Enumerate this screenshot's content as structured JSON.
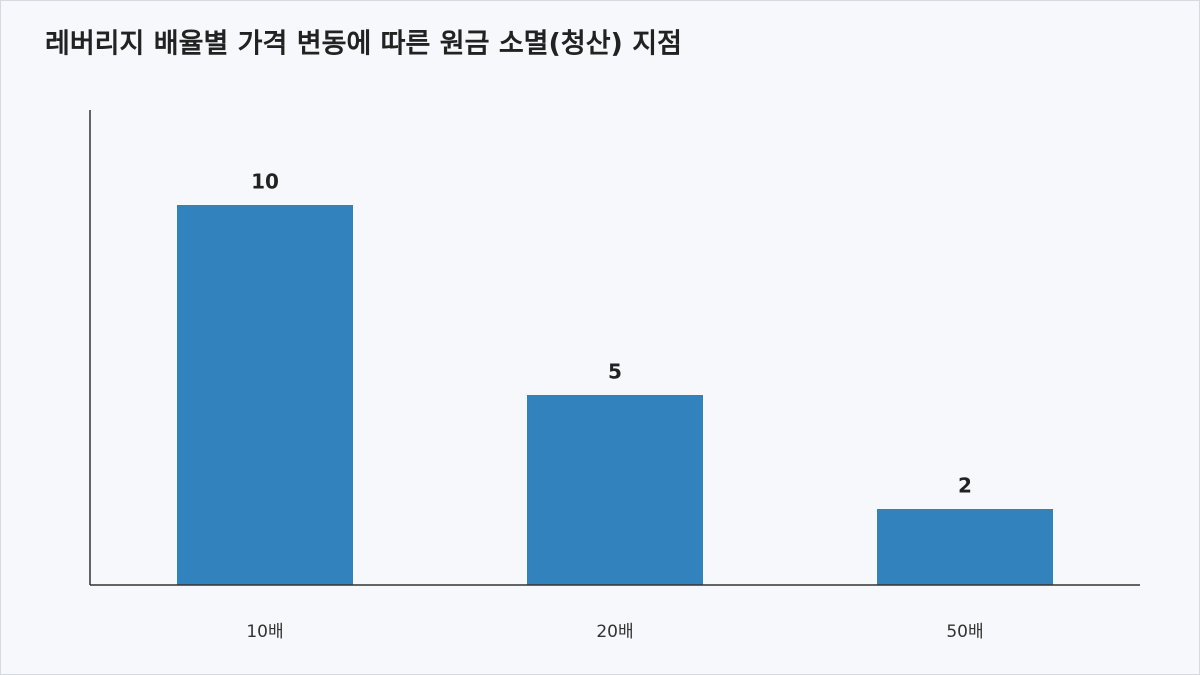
{
  "chart_data": {
    "type": "bar",
    "title": "레버리지 배율별 가격 변동에 따른 원금 소멸(청산) 지점",
    "categories": [
      "10배",
      "20배",
      "50배"
    ],
    "values": [
      10,
      5,
      2
    ],
    "color": "#3182bd",
    "ylim": [
      0,
      12.5
    ]
  }
}
